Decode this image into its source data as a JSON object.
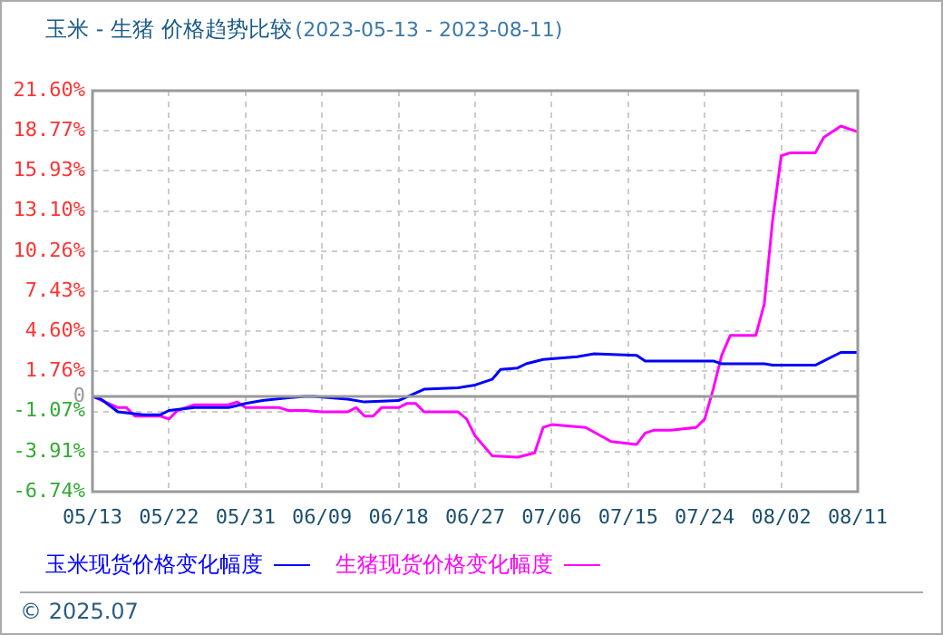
{
  "chart_data": {
    "type": "line",
    "title": "玉米 - 生猪 价格趋势比较",
    "subtitle": "(2023-05-13 - 2023-08-11)",
    "xlim": [
      "2023-05-13",
      "2023-08-11"
    ],
    "xticks": [
      {
        "value": "2023-05-13",
        "label": "05/13"
      },
      {
        "value": "2023-05-22",
        "label": "05/22"
      },
      {
        "value": "2023-05-31",
        "label": "05/31"
      },
      {
        "value": "2023-06-09",
        "label": "06/09"
      },
      {
        "value": "2023-06-18",
        "label": "06/18"
      },
      {
        "value": "2023-06-27",
        "label": "06/27"
      },
      {
        "value": "2023-07-06",
        "label": "07/06"
      },
      {
        "value": "2023-07-15",
        "label": "07/15"
      },
      {
        "value": "2023-07-24",
        "label": "07/24"
      },
      {
        "value": "2023-08-02",
        "label": "08/02"
      },
      {
        "value": "2023-08-11",
        "label": "08/11"
      }
    ],
    "ylim": [
      -6.74,
      21.6
    ],
    "yticks": [
      {
        "value": -6.74,
        "label": "-6.74%"
      },
      {
        "value": -3.91,
        "label": "-3.91%"
      },
      {
        "value": -1.07,
        "label": "-1.07%"
      },
      0,
      {
        "value": 1.76,
        "label": "1.76%"
      },
      {
        "value": 4.6,
        "label": "4.60%"
      },
      {
        "value": 7.43,
        "label": "7.43%"
      },
      {
        "value": 10.26,
        "label": "10.26%"
      },
      {
        "value": 13.1,
        "label": "13.10%"
      },
      {
        "value": 15.93,
        "label": "15.93%"
      },
      {
        "value": 18.77,
        "label": "18.77%"
      },
      {
        "value": 21.6,
        "label": "21.60%"
      }
    ],
    "grid": true,
    "legend": "bottom",
    "ref_lines": [
      {
        "axis": "y",
        "value": 0,
        "color": "#999999"
      }
    ],
    "series": [
      {
        "name": "玉米现货价格变化幅度",
        "color": "#0000ff",
        "x": [
          "2023-05-13",
          "2023-05-14",
          "2023-05-16",
          "2023-05-19",
          "2023-05-21",
          "2023-05-22",
          "2023-05-25",
          "2023-05-29",
          "2023-05-31",
          "2023-06-02",
          "2023-06-05",
          "2023-06-07",
          "2023-06-08",
          "2023-06-12",
          "2023-06-14",
          "2023-06-18",
          "2023-06-21",
          "2023-06-25",
          "2023-06-27",
          "2023-06-29",
          "2023-06-30",
          "2023-07-02",
          "2023-07-03",
          "2023-07-05",
          "2023-07-09",
          "2023-07-11",
          "2023-07-16",
          "2023-07-17",
          "2023-07-25",
          "2023-07-26",
          "2023-07-31",
          "2023-08-01",
          "2023-08-06",
          "2023-08-09",
          "2023-08-11"
        ],
        "values": [
          0,
          -0.2,
          -1.1,
          -1.3,
          -1.3,
          -1,
          -0.8,
          -0.8,
          -0.5,
          -0.3,
          -0.1,
          0,
          0,
          -0.2,
          -0.4,
          -0.3,
          0.5,
          0.6,
          0.8,
          1.2,
          1.9,
          2,
          2.3,
          2.6,
          2.8,
          3,
          2.9,
          2.5,
          2.5,
          2.3,
          2.3,
          2.2,
          2.2,
          3.1,
          3.1
        ]
      },
      {
        "name": "生猪现货价格变化幅度",
        "color": "#ff00ff",
        "x": [
          "2023-05-13",
          "2023-05-16",
          "2023-05-17",
          "2023-05-18",
          "2023-05-21",
          "2023-05-22",
          "2023-05-23",
          "2023-05-25",
          "2023-05-29",
          "2023-05-30",
          "2023-05-31",
          "2023-06-04",
          "2023-06-05",
          "2023-06-07",
          "2023-06-09",
          "2023-06-12",
          "2023-06-13",
          "2023-06-14",
          "2023-06-15",
          "2023-06-16",
          "2023-06-18",
          "2023-06-19",
          "2023-06-20",
          "2023-06-21",
          "2023-06-25",
          "2023-06-26",
          "2023-06-27",
          "2023-06-29",
          "2023-07-02",
          "2023-07-04",
          "2023-07-05",
          "2023-07-06",
          "2023-07-10",
          "2023-07-13",
          "2023-07-16",
          "2023-07-17",
          "2023-07-18",
          "2023-07-20",
          "2023-07-23",
          "2023-07-24",
          "2023-07-25",
          "2023-07-26",
          "2023-07-27",
          "2023-07-30",
          "2023-07-31",
          "2023-08-01",
          "2023-08-02",
          "2023-08-03",
          "2023-08-06",
          "2023-08-07",
          "2023-08-09",
          "2023-08-11"
        ],
        "values": [
          0,
          -0.8,
          -0.8,
          -1.4,
          -1.4,
          -1.6,
          -1,
          -0.6,
          -0.6,
          -0.4,
          -0.8,
          -0.8,
          -1,
          -1,
          -1.1,
          -1.1,
          -0.8,
          -1.4,
          -1.4,
          -0.8,
          -0.8,
          -0.5,
          -0.5,
          -1.1,
          -1.1,
          -1.6,
          -2.8,
          -4.2,
          -4.3,
          -4,
          -2.2,
          -2,
          -2.2,
          -3.2,
          -3.4,
          -2.6,
          -2.4,
          -2.4,
          -2.2,
          -1.6,
          0.5,
          2.9,
          4.3,
          4.3,
          6.5,
          12.5,
          17,
          17.2,
          17.2,
          18.3,
          19.1,
          18.7
        ]
      }
    ],
    "annotations": [
      "© 2025.07"
    ]
  }
}
